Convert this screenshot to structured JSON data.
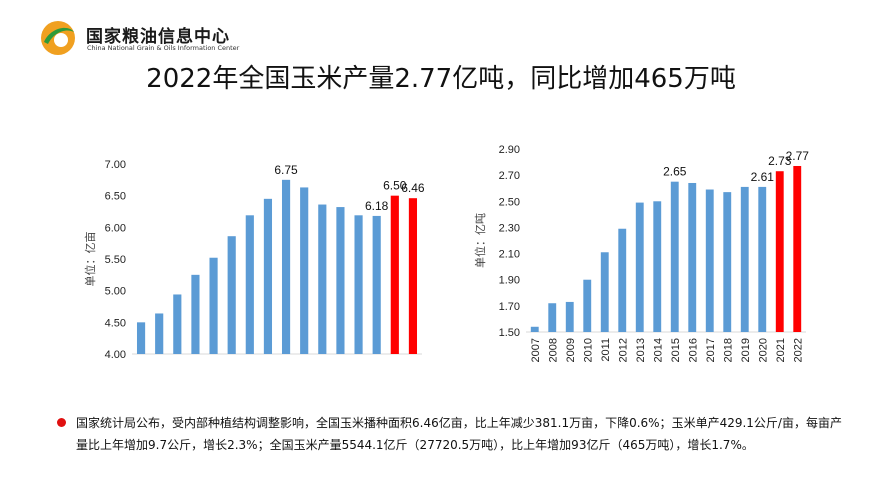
{
  "brand": {
    "name_cn": "国家粮油信息中心",
    "name_en": "China National Grain & Oils Information Center"
  },
  "title": "2022年全国玉米产量2.77亿吨，同比增加465万吨",
  "note": "国家统计局公布，受内部种植结构调整影响，全国玉米播种面积6.46亿亩，比上年减少381.1万亩，下降0.6%；玉米单产429.1公斤/亩，每亩产量比上年增加9.7公斤，增长2.3%；全国玉米产量5544.1亿斤（27720.5万吨），比上年增加93亿斤（465万吨），增长1.7%。",
  "colors": {
    "bar": "#5b9bd5",
    "highlight": "#ff0000",
    "bullet": "#e01010"
  },
  "chart_data": [
    {
      "type": "bar",
      "title": "",
      "ylabel": "单位：亿亩",
      "ylim": [
        4.0,
        7.0
      ],
      "yticks": [
        "4.00",
        "4.50",
        "5.00",
        "5.50",
        "6.00",
        "6.50",
        "7.00"
      ],
      "values": [
        4.5,
        4.64,
        4.94,
        5.25,
        5.52,
        5.86,
        6.19,
        6.45,
        6.75,
        6.63,
        6.36,
        6.32,
        6.19,
        6.18,
        6.5,
        6.46
      ],
      "highlight": [
        14,
        15
      ],
      "data_labels": [
        {
          "index": 8,
          "text": "6.75"
        },
        {
          "index": 13,
          "text": "6.18"
        },
        {
          "index": 14,
          "text": "6.50"
        },
        {
          "index": 15,
          "text": "6.46"
        }
      ]
    },
    {
      "type": "bar",
      "title": "",
      "ylabel": "单位：亿吨",
      "ylim": [
        1.5,
        2.9
      ],
      "yticks": [
        "1.50",
        "1.70",
        "1.90",
        "2.10",
        "2.30",
        "2.50",
        "2.70",
        "2.90"
      ],
      "categories": [
        "2007",
        "2008",
        "2009",
        "2010",
        "2011",
        "2012",
        "2013",
        "2014",
        "2015",
        "2016",
        "2017",
        "2018",
        "2019",
        "2020",
        "2021",
        "2022"
      ],
      "values": [
        1.54,
        1.72,
        1.73,
        1.9,
        2.11,
        2.29,
        2.49,
        2.5,
        2.65,
        2.64,
        2.59,
        2.57,
        2.61,
        2.61,
        2.73,
        2.77
      ],
      "highlight": [
        14,
        15
      ],
      "data_labels": [
        {
          "index": 8,
          "text": "2.65"
        },
        {
          "index": 13,
          "text": "2.61"
        },
        {
          "index": 14,
          "text": "2.73"
        },
        {
          "index": 15,
          "text": "2.77"
        }
      ]
    }
  ]
}
